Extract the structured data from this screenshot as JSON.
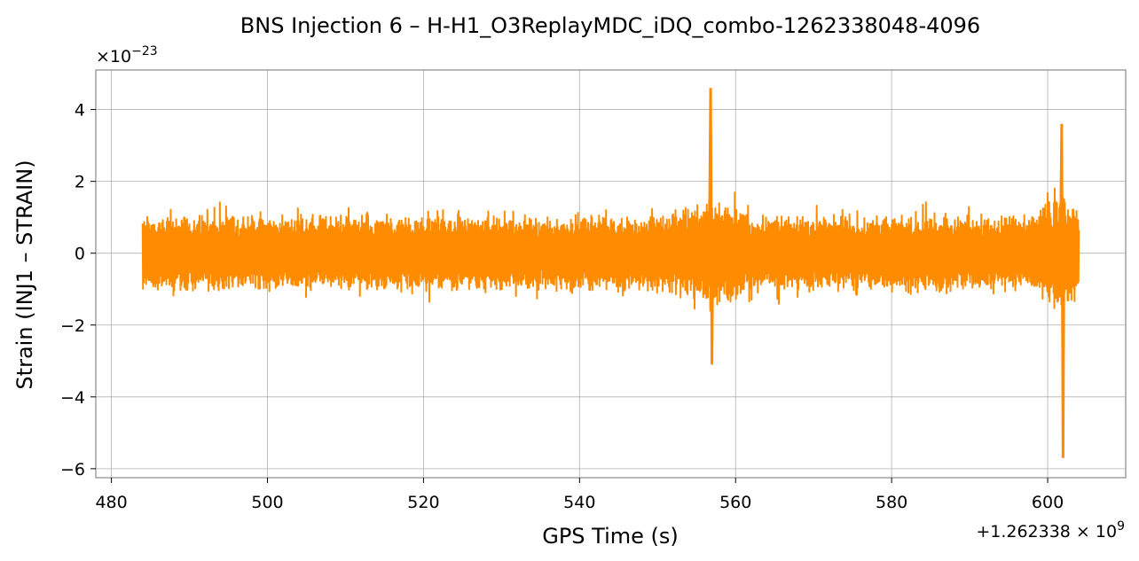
{
  "chart_data": {
    "type": "line",
    "title": "BNS Injection 6 – H-H1_O3ReplayMDC_iDQ_combo-1262338048-4096",
    "xlabel": "GPS Time (s)",
    "ylabel": "Strain (INJ1 – STRAIN)",
    "x_offset_text": "+1.262338 × 10",
    "x_offset_exponent": "9",
    "y_scale_text": "×10",
    "y_scale_exponent": "−23",
    "xlim": [
      478,
      610
    ],
    "ylim": [
      -6.25,
      5.1
    ],
    "x_ticks": [
      480,
      500,
      520,
      540,
      560,
      580,
      600
    ],
    "x_tick_labels": [
      "480",
      "500",
      "520",
      "540",
      "560",
      "580",
      "600"
    ],
    "y_ticks": [
      -6,
      -4,
      -2,
      0,
      2,
      4
    ],
    "y_tick_labels": [
      "−6",
      "−4",
      "−2",
      "0",
      "2",
      "4"
    ],
    "grid": true,
    "series": [
      {
        "color": "#ff8c00",
        "x_start": 484,
        "x_end": 604,
        "baseline_amplitude": 1.1,
        "spikes": [
          {
            "x": 556.8,
            "max": 4.6,
            "min": -3.1
          },
          {
            "x": 601.8,
            "max": 3.6,
            "min": -5.7
          }
        ]
      }
    ]
  }
}
